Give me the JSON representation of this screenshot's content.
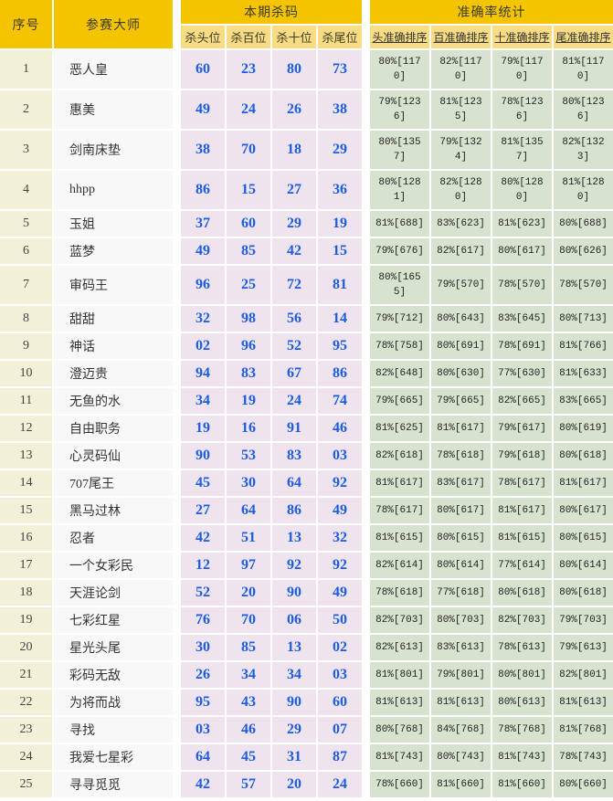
{
  "colors": {
    "header-yellow": "#F5C400",
    "subheader-yellow": "#F8DC84",
    "serial-bg": "#F3F0D8",
    "master-bg": "#F8F8F8",
    "kill-bg": "#EFE4EE",
    "accuracy-bg": "#D7E3CF",
    "kill-blue": "#1A5CE8",
    "text-dark": "#333333"
  },
  "header": {
    "col_serial": "序号",
    "col_master": "参赛大师",
    "group_kill": "本期杀码",
    "group_accuracy": "准确率统计",
    "kill_subcols": [
      "杀头位",
      "杀百位",
      "杀十位",
      "杀尾位"
    ],
    "accuracy_subcols": [
      "头准确排序",
      "百准确排序",
      "十准确排序",
      "尾准确排序"
    ]
  },
  "rows": [
    {
      "no": "1",
      "master": "恶人皇",
      "kills": [
        "60",
        "23",
        "80",
        "73"
      ],
      "accuracy": [
        "80%[1170]",
        "82%[1170]",
        "79%[1170]",
        "81%[1170]"
      ]
    },
    {
      "no": "2",
      "master": "惠美",
      "kills": [
        "49",
        "24",
        "26",
        "38"
      ],
      "accuracy": [
        "79%[1236]",
        "81%[1235]",
        "78%[1236]",
        "80%[1236]"
      ]
    },
    {
      "no": "3",
      "master": "剑南床垫",
      "kills": [
        "38",
        "70",
        "18",
        "29"
      ],
      "accuracy": [
        "80%[1357]",
        "79%[1324]",
        "81%[1357]",
        "82%[1323]"
      ]
    },
    {
      "no": "4",
      "master": "hhpp",
      "kills": [
        "86",
        "15",
        "27",
        "36"
      ],
      "accuracy": [
        "80%[1281]",
        "82%[1280]",
        "80%[1280]",
        "81%[1280]"
      ]
    },
    {
      "no": "5",
      "master": "玉姐",
      "kills": [
        "37",
        "60",
        "29",
        "19"
      ],
      "accuracy": [
        "81%[688]",
        "83%[623]",
        "81%[623]",
        "80%[688]"
      ]
    },
    {
      "no": "6",
      "master": "蓝梦",
      "kills": [
        "49",
        "85",
        "42",
        "15"
      ],
      "accuracy": [
        "79%[676]",
        "82%[617]",
        "80%[617]",
        "80%[626]"
      ]
    },
    {
      "no": "7",
      "master": "审码王",
      "kills": [
        "96",
        "25",
        "72",
        "81"
      ],
      "accuracy": [
        "80%[1655]",
        "79%[570]",
        "78%[570]",
        "78%[570]"
      ]
    },
    {
      "no": "8",
      "master": "甜甜",
      "kills": [
        "32",
        "98",
        "56",
        "14"
      ],
      "accuracy": [
        "79%[712]",
        "80%[643]",
        "83%[645]",
        "80%[713]"
      ]
    },
    {
      "no": "9",
      "master": "神话",
      "kills": [
        "02",
        "96",
        "52",
        "95"
      ],
      "accuracy": [
        "78%[758]",
        "80%[691]",
        "78%[691]",
        "81%[766]"
      ]
    },
    {
      "no": "10",
      "master": "澄迈贵",
      "kills": [
        "94",
        "83",
        "67",
        "86"
      ],
      "accuracy": [
        "82%[648]",
        "80%[630]",
        "77%[630]",
        "81%[633]"
      ]
    },
    {
      "no": "11",
      "master": "无鱼的水",
      "kills": [
        "34",
        "19",
        "24",
        "74"
      ],
      "accuracy": [
        "79%[665]",
        "79%[665]",
        "82%[665]",
        "83%[665]"
      ]
    },
    {
      "no": "12",
      "master": "自由职务",
      "kills": [
        "19",
        "16",
        "91",
        "46"
      ],
      "accuracy": [
        "81%[625]",
        "81%[617]",
        "79%[617]",
        "80%[619]"
      ]
    },
    {
      "no": "13",
      "master": "心灵码仙",
      "kills": [
        "90",
        "53",
        "83",
        "03"
      ],
      "accuracy": [
        "82%[618]",
        "78%[618]",
        "79%[618]",
        "80%[618]"
      ]
    },
    {
      "no": "14",
      "master": "707尾王",
      "kills": [
        "45",
        "30",
        "64",
        "92"
      ],
      "accuracy": [
        "81%[617]",
        "83%[617]",
        "78%[617]",
        "81%[617]"
      ]
    },
    {
      "no": "15",
      "master": "黑马过林",
      "kills": [
        "27",
        "64",
        "86",
        "49"
      ],
      "accuracy": [
        "78%[617]",
        "80%[617]",
        "81%[617]",
        "80%[617]"
      ]
    },
    {
      "no": "16",
      "master": "忍者",
      "kills": [
        "42",
        "51",
        "13",
        "32"
      ],
      "accuracy": [
        "81%[615]",
        "80%[615]",
        "81%[615]",
        "80%[615]"
      ]
    },
    {
      "no": "17",
      "master": "一个女彩民",
      "kills": [
        "12",
        "97",
        "92",
        "92"
      ],
      "accuracy": [
        "82%[614]",
        "80%[614]",
        "77%[614]",
        "80%[614]"
      ]
    },
    {
      "no": "18",
      "master": "天涯论剑",
      "kills": [
        "52",
        "20",
        "90",
        "49"
      ],
      "accuracy": [
        "78%[618]",
        "77%[618]",
        "80%[618]",
        "80%[618]"
      ]
    },
    {
      "no": "19",
      "master": "七彩红星",
      "kills": [
        "76",
        "70",
        "06",
        "50"
      ],
      "accuracy": [
        "82%[703]",
        "80%[703]",
        "82%[703]",
        "79%[703]"
      ]
    },
    {
      "no": "20",
      "master": "星光头尾",
      "kills": [
        "30",
        "85",
        "13",
        "02"
      ],
      "accuracy": [
        "82%[613]",
        "83%[613]",
        "78%[613]",
        "79%[613]"
      ]
    },
    {
      "no": "21",
      "master": "彩码无敌",
      "kills": [
        "26",
        "34",
        "34",
        "03"
      ],
      "accuracy": [
        "81%[801]",
        "79%[801]",
        "80%[801]",
        "82%[801]"
      ]
    },
    {
      "no": "22",
      "master": "为将而战",
      "kills": [
        "95",
        "43",
        "90",
        "60"
      ],
      "accuracy": [
        "81%[613]",
        "81%[613]",
        "80%[613]",
        "81%[613]"
      ]
    },
    {
      "no": "23",
      "master": "寻找",
      "kills": [
        "03",
        "46",
        "29",
        "07"
      ],
      "accuracy": [
        "80%[768]",
        "84%[768]",
        "78%[768]",
        "81%[768]"
      ]
    },
    {
      "no": "24",
      "master": "我爱七星彩",
      "kills": [
        "64",
        "45",
        "31",
        "87"
      ],
      "accuracy": [
        "81%[743]",
        "80%[743]",
        "81%[743]",
        "78%[743]"
      ]
    },
    {
      "no": "25",
      "master": "寻寻觅觅",
      "kills": [
        "42",
        "57",
        "20",
        "24"
      ],
      "accuracy": [
        "78%[660]",
        "81%[660]",
        "81%[660]",
        "80%[660]"
      ]
    }
  ]
}
